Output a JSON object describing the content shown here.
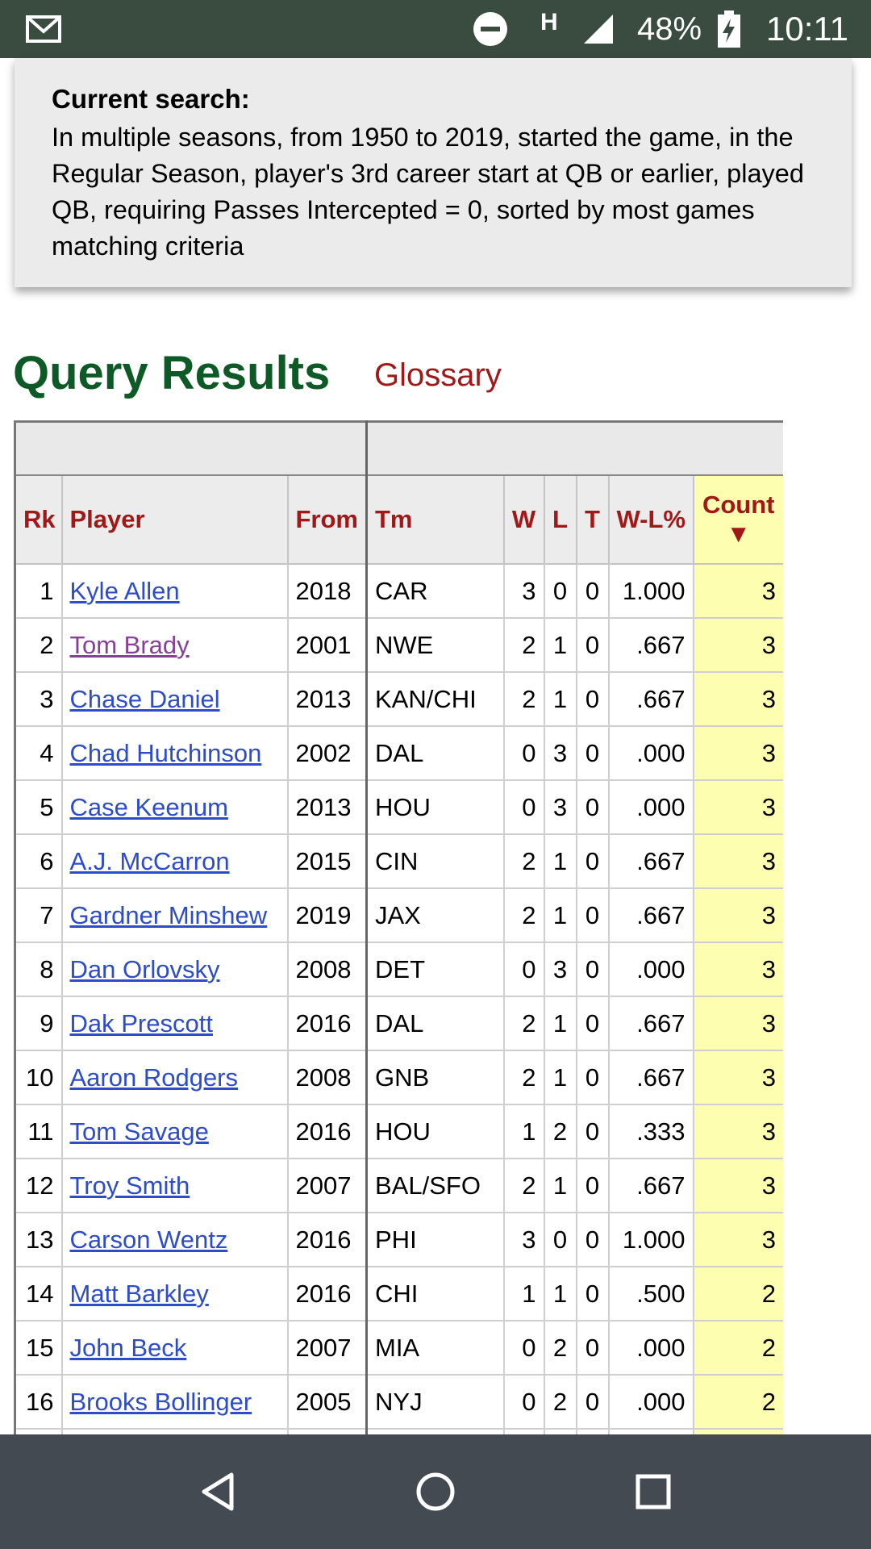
{
  "status_bar": {
    "battery_percent": "48%",
    "clock": "10:11",
    "network_type": "H",
    "icons": [
      "gmail-icon",
      "do-not-disturb-icon",
      "signal-icon",
      "battery-charging-icon"
    ]
  },
  "search": {
    "label": "Current search:",
    "description": "In multiple seasons, from 1950 to 2019, started the game, in the Regular Season, player's 3rd career start at QB or earlier, played QB, requiring Passes Intercepted = 0, sorted by most games matching criteria"
  },
  "results": {
    "title": "Query Results",
    "glossary_link": "Glossary"
  },
  "table": {
    "headers": {
      "rk": "Rk",
      "player": "Player",
      "from": "From",
      "tm": "Tm",
      "w": "W",
      "l": "L",
      "t": "T",
      "wlpct": "W-L%",
      "count": "Count",
      "sort_arrow": "▼"
    },
    "rows": [
      {
        "rk": "1",
        "player": "Kyle Allen",
        "from": "2018",
        "tm": "CAR",
        "w": "3",
        "l": "0",
        "t": "0",
        "wlpct": "1.000",
        "count": "3"
      },
      {
        "rk": "2",
        "player": "Tom Brady",
        "from": "2001",
        "tm": "NWE",
        "w": "2",
        "l": "1",
        "t": "0",
        "wlpct": ".667",
        "count": "3"
      },
      {
        "rk": "3",
        "player": "Chase Daniel",
        "from": "2013",
        "tm": "KAN/CHI",
        "w": "2",
        "l": "1",
        "t": "0",
        "wlpct": ".667",
        "count": "3"
      },
      {
        "rk": "4",
        "player": "Chad Hutchinson",
        "from": "2002",
        "tm": "DAL",
        "w": "0",
        "l": "3",
        "t": "0",
        "wlpct": ".000",
        "count": "3"
      },
      {
        "rk": "5",
        "player": "Case Keenum",
        "from": "2013",
        "tm": "HOU",
        "w": "0",
        "l": "3",
        "t": "0",
        "wlpct": ".000",
        "count": "3"
      },
      {
        "rk": "6",
        "player": "A.J. McCarron",
        "from": "2015",
        "tm": "CIN",
        "w": "2",
        "l": "1",
        "t": "0",
        "wlpct": ".667",
        "count": "3"
      },
      {
        "rk": "7",
        "player": "Gardner Minshew",
        "from": "2019",
        "tm": "JAX",
        "w": "2",
        "l": "1",
        "t": "0",
        "wlpct": ".667",
        "count": "3"
      },
      {
        "rk": "8",
        "player": "Dan Orlovsky",
        "from": "2008",
        "tm": "DET",
        "w": "0",
        "l": "3",
        "t": "0",
        "wlpct": ".000",
        "count": "3"
      },
      {
        "rk": "9",
        "player": "Dak Prescott",
        "from": "2016",
        "tm": "DAL",
        "w": "2",
        "l": "1",
        "t": "0",
        "wlpct": ".667",
        "count": "3"
      },
      {
        "rk": "10",
        "player": "Aaron Rodgers",
        "from": "2008",
        "tm": "GNB",
        "w": "2",
        "l": "1",
        "t": "0",
        "wlpct": ".667",
        "count": "3"
      },
      {
        "rk": "11",
        "player": "Tom Savage",
        "from": "2016",
        "tm": "HOU",
        "w": "1",
        "l": "2",
        "t": "0",
        "wlpct": ".333",
        "count": "3"
      },
      {
        "rk": "12",
        "player": "Troy Smith",
        "from": "2007",
        "tm": "BAL/SFO",
        "w": "2",
        "l": "1",
        "t": "0",
        "wlpct": ".667",
        "count": "3"
      },
      {
        "rk": "13",
        "player": "Carson Wentz",
        "from": "2016",
        "tm": "PHI",
        "w": "3",
        "l": "0",
        "t": "0",
        "wlpct": "1.000",
        "count": "3"
      },
      {
        "rk": "14",
        "player": "Matt Barkley",
        "from": "2016",
        "tm": "CHI",
        "w": "1",
        "l": "1",
        "t": "0",
        "wlpct": ".500",
        "count": "2"
      },
      {
        "rk": "15",
        "player": "John Beck",
        "from": "2007",
        "tm": "MIA",
        "w": "0",
        "l": "2",
        "t": "0",
        "wlpct": ".000",
        "count": "2"
      },
      {
        "rk": "16",
        "player": "Brooks Bollinger",
        "from": "2005",
        "tm": "NYJ",
        "w": "0",
        "l": "2",
        "t": "0",
        "wlpct": ".000",
        "count": "2"
      },
      {
        "rk": "",
        "player": "",
        "from": "",
        "tm": "",
        "w": "",
        "l": "",
        "t": "",
        "wlpct": "",
        "count": ""
      }
    ],
    "visited_player": "Tom Brady"
  },
  "colors": {
    "status_bar": "#3a4c40",
    "title_green": "#0d5a26",
    "header_red": "#a01818",
    "link_blue": "#2d4cc9",
    "link_visited": "#864196",
    "count_highlight": "#fefeb1",
    "nav_bar": "#434a52"
  },
  "nav_bar": {
    "icons": [
      "back-icon",
      "home-icon",
      "recents-icon"
    ]
  }
}
